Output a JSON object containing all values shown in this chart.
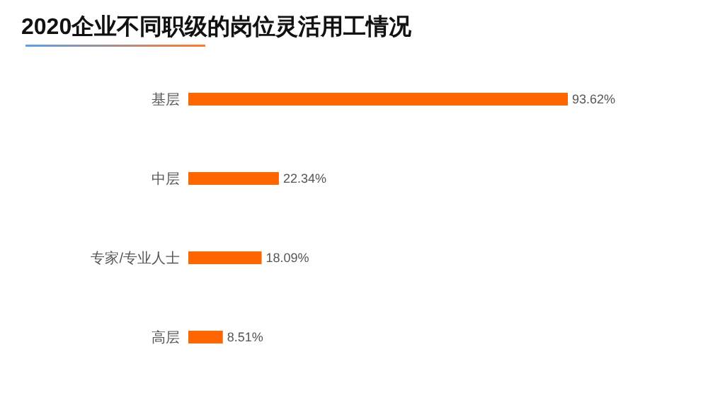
{
  "chart_data": {
    "type": "bar",
    "orientation": "horizontal",
    "title": "2020企业不同职级的岗位灵活用工情况",
    "categories": [
      "基层",
      "中层",
      "专家/专业人士",
      "高层"
    ],
    "values": [
      93.62,
      22.34,
      18.09,
      8.51
    ],
    "value_labels": [
      "93.62%",
      "22.34%",
      "18.09%",
      "8.51%"
    ],
    "color": "#ff6600"
  }
}
